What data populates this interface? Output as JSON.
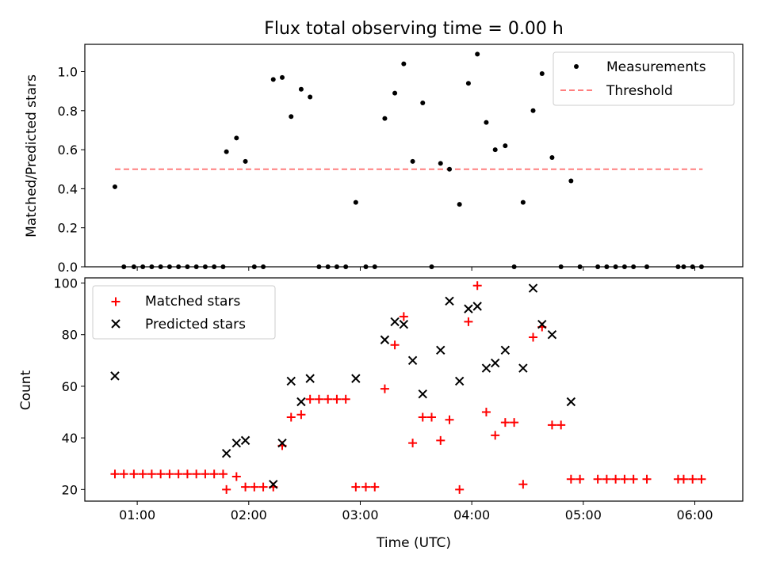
{
  "chart_data": [
    {
      "type": "scatter",
      "title": "Flux total observing time = 0.00 h",
      "xlabel": "",
      "ylabel": "Matched/Predicted stars",
      "xlim": [
        0.53,
        6.43
      ],
      "ylim": [
        0,
        1.14
      ],
      "yticks": [
        0.0,
        0.2,
        0.4,
        0.6,
        0.8,
        1.0
      ],
      "ytick_labels": [
        "0.0",
        "0.2",
        "0.4",
        "0.6",
        "0.8",
        "1.0"
      ],
      "legend": {
        "position": "top-right",
        "entries": [
          "Measurements",
          "Threshold"
        ]
      },
      "threshold": {
        "name": "Threshold",
        "value": 0.5,
        "x": [
          0.8,
          6.07
        ],
        "color": "#ff7f7f"
      },
      "series": [
        {
          "name": "Measurements",
          "color": "#000000",
          "points": [
            [
              0.8,
              0.41
            ],
            [
              0.88,
              0.0
            ],
            [
              0.97,
              0.0
            ],
            [
              1.05,
              0.0
            ],
            [
              1.13,
              0.0
            ],
            [
              1.21,
              0.0
            ],
            [
              1.29,
              0.0
            ],
            [
              1.37,
              0.0
            ],
            [
              1.45,
              0.0
            ],
            [
              1.53,
              0.0
            ],
            [
              1.61,
              0.0
            ],
            [
              1.69,
              0.0
            ],
            [
              1.77,
              0.0
            ],
            [
              1.8,
              0.59
            ],
            [
              1.89,
              0.66
            ],
            [
              1.97,
              0.54
            ],
            [
              2.05,
              0.0
            ],
            [
              2.13,
              0.0
            ],
            [
              2.22,
              0.96
            ],
            [
              2.3,
              0.97
            ],
            [
              2.38,
              0.77
            ],
            [
              2.47,
              0.91
            ],
            [
              2.55,
              0.87
            ],
            [
              2.63,
              0.0
            ],
            [
              2.71,
              0.0
            ],
            [
              2.79,
              0.0
            ],
            [
              2.87,
              0.0
            ],
            [
              2.96,
              0.33
            ],
            [
              3.05,
              0.0
            ],
            [
              3.13,
              0.0
            ],
            [
              3.22,
              0.76
            ],
            [
              3.31,
              0.89
            ],
            [
              3.39,
              1.04
            ],
            [
              3.47,
              0.54
            ],
            [
              3.56,
              0.84
            ],
            [
              3.64,
              0.0
            ],
            [
              3.72,
              0.53
            ],
            [
              3.8,
              0.5
            ],
            [
              3.89,
              0.32
            ],
            [
              3.97,
              0.94
            ],
            [
              4.05,
              1.09
            ],
            [
              4.13,
              0.74
            ],
            [
              4.21,
              0.6
            ],
            [
              4.3,
              0.62
            ],
            [
              4.38,
              0.0
            ],
            [
              4.46,
              0.33
            ],
            [
              4.55,
              0.8
            ],
            [
              4.63,
              0.99
            ],
            [
              4.72,
              0.56
            ],
            [
              4.8,
              0.0
            ],
            [
              4.89,
              0.44
            ],
            [
              4.97,
              0.0
            ],
            [
              5.13,
              0.0
            ],
            [
              5.21,
              0.0
            ],
            [
              5.29,
              0.0
            ],
            [
              5.37,
              0.0
            ],
            [
              5.45,
              0.0
            ],
            [
              5.57,
              0.0
            ],
            [
              5.85,
              0.0
            ],
            [
              5.9,
              0.0
            ],
            [
              5.98,
              0.0
            ],
            [
              6.06,
              0.0
            ]
          ]
        }
      ]
    },
    {
      "type": "scatter",
      "title": "",
      "xlabel": "Time (UTC)",
      "ylabel": "Count",
      "xlim": [
        0.53,
        6.43
      ],
      "ylim": [
        15.5,
        102
      ],
      "xticks": [
        1,
        2,
        3,
        4,
        5,
        6
      ],
      "xtick_labels": [
        "01:00",
        "02:00",
        "03:00",
        "04:00",
        "05:00",
        "06:00"
      ],
      "yticks": [
        20,
        40,
        60,
        80,
        100
      ],
      "ytick_labels": [
        "20",
        "40",
        "60",
        "80",
        "100"
      ],
      "legend": {
        "position": "top-left",
        "entries": [
          "Matched stars",
          "Predicted stars"
        ]
      },
      "series": [
        {
          "name": "Matched stars",
          "marker": "+",
          "color": "#ff0000",
          "points": [
            [
              0.8,
              26
            ],
            [
              0.88,
              26
            ],
            [
              0.97,
              26
            ],
            [
              1.05,
              26
            ],
            [
              1.13,
              26
            ],
            [
              1.21,
              26
            ],
            [
              1.29,
              26
            ],
            [
              1.37,
              26
            ],
            [
              1.45,
              26
            ],
            [
              1.53,
              26
            ],
            [
              1.61,
              26
            ],
            [
              1.69,
              26
            ],
            [
              1.77,
              26
            ],
            [
              1.8,
              20
            ],
            [
              1.89,
              25
            ],
            [
              1.97,
              21
            ],
            [
              2.05,
              21
            ],
            [
              2.13,
              21
            ],
            [
              2.22,
              21
            ],
            [
              2.3,
              37
            ],
            [
              2.38,
              48
            ],
            [
              2.47,
              49
            ],
            [
              2.55,
              55
            ],
            [
              2.63,
              55
            ],
            [
              2.71,
              55
            ],
            [
              2.79,
              55
            ],
            [
              2.87,
              55
            ],
            [
              2.96,
              21
            ],
            [
              3.05,
              21
            ],
            [
              3.13,
              21
            ],
            [
              3.22,
              59
            ],
            [
              3.31,
              76
            ],
            [
              3.39,
              87
            ],
            [
              3.47,
              38
            ],
            [
              3.56,
              48
            ],
            [
              3.64,
              48
            ],
            [
              3.72,
              39
            ],
            [
              3.8,
              47
            ],
            [
              3.89,
              20
            ],
            [
              3.97,
              85
            ],
            [
              4.05,
              99
            ],
            [
              4.13,
              50
            ],
            [
              4.21,
              41
            ],
            [
              4.3,
              46
            ],
            [
              4.38,
              46
            ],
            [
              4.46,
              22
            ],
            [
              4.55,
              79
            ],
            [
              4.63,
              83
            ],
            [
              4.72,
              45
            ],
            [
              4.8,
              45
            ],
            [
              4.89,
              24
            ],
            [
              4.97,
              24
            ],
            [
              5.13,
              24
            ],
            [
              5.21,
              24
            ],
            [
              5.29,
              24
            ],
            [
              5.37,
              24
            ],
            [
              5.45,
              24
            ],
            [
              5.57,
              24
            ],
            [
              5.85,
              24
            ],
            [
              5.9,
              24
            ],
            [
              5.98,
              24
            ],
            [
              6.06,
              24
            ]
          ]
        },
        {
          "name": "Predicted stars",
          "marker": "x",
          "color": "#000000",
          "points": [
            [
              0.8,
              64
            ],
            [
              1.8,
              34
            ],
            [
              1.89,
              38
            ],
            [
              1.97,
              39
            ],
            [
              2.22,
              22
            ],
            [
              2.3,
              38
            ],
            [
              2.38,
              62
            ],
            [
              2.47,
              54
            ],
            [
              2.55,
              63
            ],
            [
              2.96,
              63
            ],
            [
              3.22,
              78
            ],
            [
              3.31,
              85
            ],
            [
              3.39,
              84
            ],
            [
              3.47,
              70
            ],
            [
              3.56,
              57
            ],
            [
              3.72,
              74
            ],
            [
              3.8,
              93
            ],
            [
              3.89,
              62
            ],
            [
              3.97,
              90
            ],
            [
              4.05,
              91
            ],
            [
              4.13,
              67
            ],
            [
              4.21,
              69
            ],
            [
              4.3,
              74
            ],
            [
              4.46,
              67
            ],
            [
              4.55,
              98
            ],
            [
              4.63,
              84
            ],
            [
              4.72,
              80
            ],
            [
              4.89,
              54
            ]
          ]
        }
      ]
    }
  ]
}
